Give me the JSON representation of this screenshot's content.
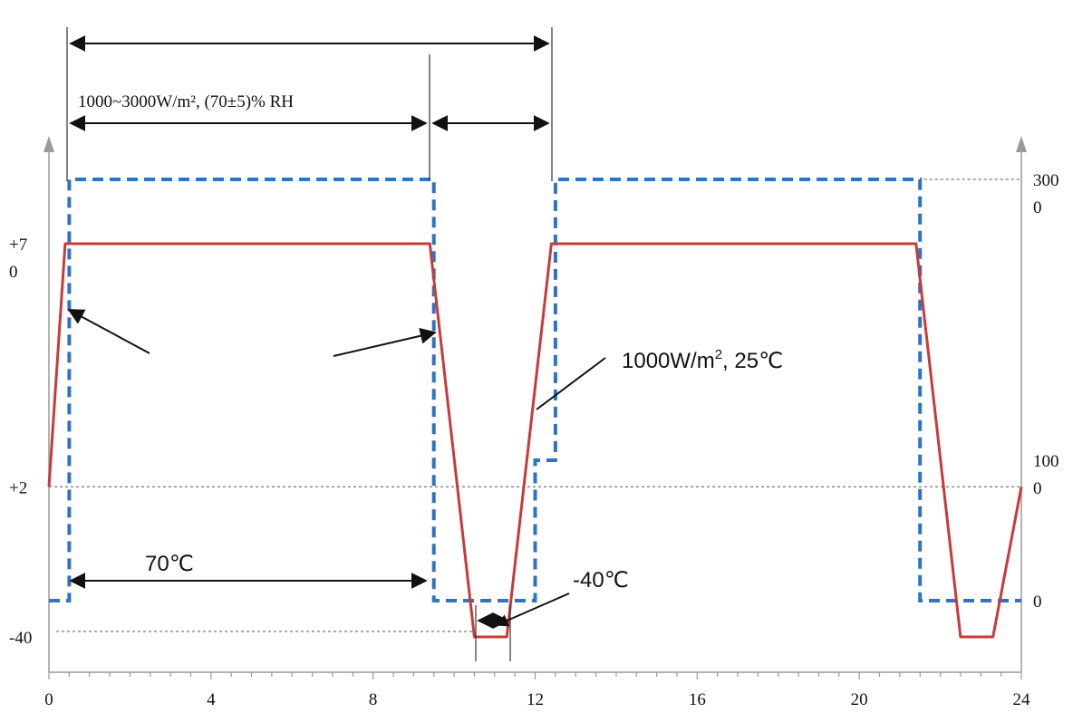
{
  "chart_data": {
    "type": "line",
    "x": [
      0,
      0.4,
      9.4,
      10.5,
      11.3,
      12.4,
      21.4,
      22.5,
      23.3,
      24
    ],
    "xlim": [
      0,
      24
    ],
    "x_ticks": [
      0,
      4,
      8,
      12,
      16,
      20,
      24
    ],
    "x_ticks_minor_step": 0.5,
    "series": [
      {
        "axis": "left",
        "points": [
          [
            0,
            2
          ],
          [
            0.4,
            70
          ],
          [
            9.4,
            70
          ],
          [
            10.5,
            -40
          ],
          [
            11.3,
            -40
          ],
          [
            12.4,
            70
          ],
          [
            21.4,
            70
          ],
          [
            22.5,
            -40
          ],
          [
            23.3,
            -40
          ],
          [
            24,
            2
          ]
        ],
        "color": "#c83a3a",
        "style": "solid"
      },
      {
        "axis": "right",
        "points": [
          [
            0,
            0
          ],
          [
            0.5,
            0
          ],
          [
            0.5,
            3000
          ],
          [
            9.5,
            3000
          ],
          [
            9.5,
            0
          ],
          [
            12.0,
            0
          ],
          [
            12.0,
            1000
          ],
          [
            12.5,
            1000
          ],
          [
            12.5,
            3000
          ],
          [
            21.5,
            3000
          ],
          [
            21.5,
            0
          ],
          [
            24,
            0
          ]
        ],
        "color": "#2f73c6",
        "style": "dashed"
      }
    ],
    "left_ticks": [
      {
        "value": 70,
        "line1": "+7",
        "line2": "0"
      },
      {
        "value": 2,
        "line1": "+2",
        "line2": ""
      },
      {
        "value": -40,
        "line1": "-40",
        "line2": ""
      }
    ],
    "right_ticks": [
      {
        "value": 3000,
        "line1": "300",
        "line2": "0"
      },
      {
        "value": 1000,
        "line1": "100",
        "line2": "0"
      },
      {
        "value": 0,
        "line1": "0",
        "line2": ""
      }
    ],
    "reference_lines": [
      {
        "axis": "left",
        "value": 2
      },
      {
        "axis": "right",
        "value": 3000
      }
    ],
    "grid": false,
    "annotations": {
      "top_label": "1000~3000W/m², (70±5)% RH",
      "hot_label": "70℃",
      "cold_label": "-40℃",
      "step_label_main": "1000W/m",
      "step_label_sup": "2",
      "step_label_rest": ", 25℃"
    }
  }
}
